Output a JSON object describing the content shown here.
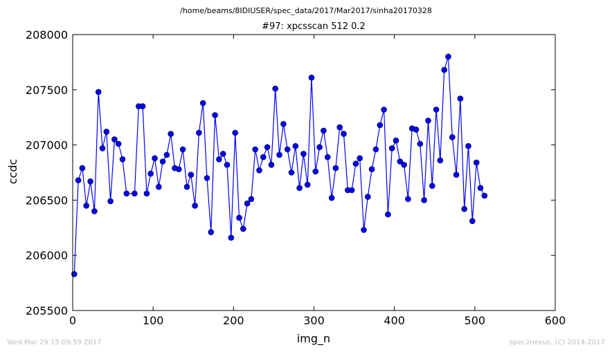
{
  "figure": {
    "suptitle": "/home/beams/8IDIUSER/spec_data/2017/Mar2017/sinha20170328",
    "footer_left": "Wed Mar 29 15:09:59 2017",
    "footer_right": "spec2nexus, (C) 2014-2017"
  },
  "chart_data": {
    "type": "line",
    "title": "#97: xpcsscan 512 0.2",
    "xlabel": "img_n",
    "ylabel": "ccdc",
    "xlim": [
      0,
      600
    ],
    "ylim": [
      205500,
      208000
    ],
    "xticks": [
      "0",
      "100",
      "200",
      "300",
      "400",
      "500",
      "600"
    ],
    "yticks": [
      "205500",
      "206000",
      "206500",
      "207000",
      "207500",
      "208000"
    ],
    "grid": false,
    "line_color": "#0000ff",
    "marker_color": "#0000ff",
    "marker": "circle",
    "series": [
      {
        "x": [
          2,
          7,
          12,
          17,
          22,
          27,
          32,
          37,
          42,
          47,
          52,
          57,
          62,
          67,
          77,
          82,
          87,
          92,
          97,
          102,
          107,
          112,
          117,
          122,
          127,
          132,
          137,
          142,
          147,
          152,
          157,
          162,
          167,
          172,
          177,
          182,
          187,
          192,
          197,
          202,
          207,
          212,
          217,
          222,
          227,
          232,
          237,
          242,
          247,
          252,
          257,
          262,
          267,
          272,
          277,
          282,
          287,
          292,
          297,
          302,
          307,
          312,
          317,
          322,
          327,
          332,
          337,
          342,
          347,
          352,
          357,
          362,
          367,
          372,
          377,
          382,
          387,
          392,
          397,
          402,
          407,
          412,
          417,
          422,
          427,
          432,
          437,
          442,
          447,
          452,
          457,
          462,
          467,
          472,
          477,
          482,
          487,
          492,
          497,
          502,
          507,
          512
        ],
        "y": [
          205830,
          206680,
          206790,
          206450,
          206670,
          206400,
          207480,
          206970,
          207120,
          206490,
          207050,
          207010,
          206870,
          206560,
          206560,
          207350,
          207350,
          206560,
          206740,
          206880,
          206620,
          206850,
          206910,
          207100,
          206790,
          206780,
          206960,
          206620,
          206730,
          206450,
          207110,
          207380,
          206700,
          206210,
          207270,
          206870,
          206920,
          206820,
          206160,
          207110,
          206340,
          206240,
          206470,
          206510,
          206960,
          206770,
          206890,
          206980,
          206820,
          207510,
          206910,
          207190,
          206960,
          206750,
          206990,
          206610,
          206920,
          206640,
          207610,
          206760,
          206980,
          207130,
          206890,
          206520,
          206790,
          207160,
          207100,
          206590,
          206590,
          206830,
          206880,
          206230,
          206530,
          206780,
          206960,
          207180,
          207320,
          206370,
          206970,
          207040,
          206850,
          206820,
          206510,
          207150,
          207140,
          207010,
          206500,
          207220,
          206630,
          207320,
          206860,
          207680,
          207800,
          207070,
          206730,
          207420,
          206420,
          206990,
          206310,
          206840,
          206610,
          206540
        ]
      }
    ]
  }
}
